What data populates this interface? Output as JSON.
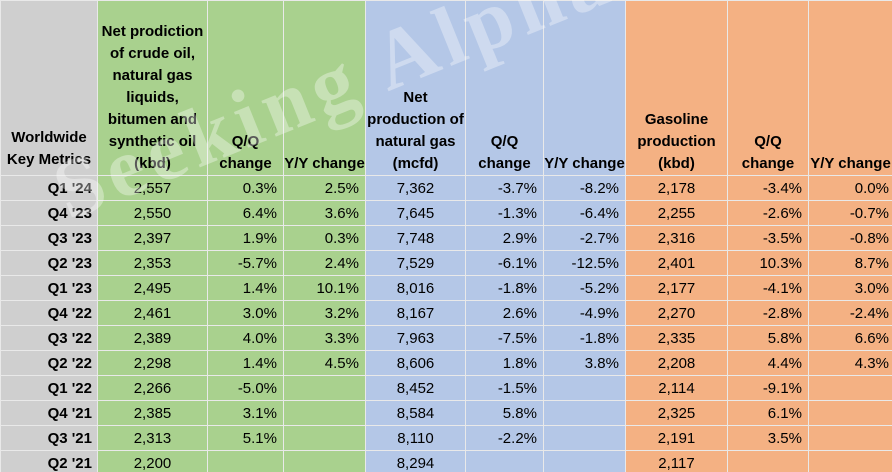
{
  "watermark": "Seeking Alpha",
  "colors": {
    "gray": "#cfcfcf",
    "green": "#a9d18e",
    "blue": "#b4c7e7",
    "orange": "#f4b183"
  },
  "headers": [
    "Worldwide Key Metrics",
    "Net prodiction of crude oil, natural gas liquids, bitumen and synthetic oil (kbd)",
    "Q/Q change",
    "Y/Y change",
    "Net production of natural gas (mcfd)",
    "Q/Q change",
    "Y/Y change",
    "Gasoline production (kbd)",
    "Q/Q change",
    "Y/Y change"
  ],
  "rows": [
    [
      "Q1 '24",
      "2,557",
      "0.3%",
      "2.5%",
      "7,362",
      "-3.7%",
      "-8.2%",
      "2,178",
      "-3.4%",
      "0.0%"
    ],
    [
      "Q4 '23",
      "2,550",
      "6.4%",
      "3.6%",
      "7,645",
      "-1.3%",
      "-6.4%",
      "2,255",
      "-2.6%",
      "-0.7%"
    ],
    [
      "Q3 '23",
      "2,397",
      "1.9%",
      "0.3%",
      "7,748",
      "2.9%",
      "-2.7%",
      "2,316",
      "-3.5%",
      "-0.8%"
    ],
    [
      "Q2 '23",
      "2,353",
      "-5.7%",
      "2.4%",
      "7,529",
      "-6.1%",
      "-12.5%",
      "2,401",
      "10.3%",
      "8.7%"
    ],
    [
      "Q1 '23",
      "2,495",
      "1.4%",
      "10.1%",
      "8,016",
      "-1.8%",
      "-5.2%",
      "2,177",
      "-4.1%",
      "3.0%"
    ],
    [
      "Q4 '22",
      "2,461",
      "3.0%",
      "3.2%",
      "8,167",
      "2.6%",
      "-4.9%",
      "2,270",
      "-2.8%",
      "-2.4%"
    ],
    [
      "Q3 '22",
      "2,389",
      "4.0%",
      "3.3%",
      "7,963",
      "-7.5%",
      "-1.8%",
      "2,335",
      "5.8%",
      "6.6%"
    ],
    [
      "Q2 '22",
      "2,298",
      "1.4%",
      "4.5%",
      "8,606",
      "1.8%",
      "3.8%",
      "2,208",
      "4.4%",
      "4.3%"
    ],
    [
      "Q1 '22",
      "2,266",
      "-5.0%",
      "",
      "8,452",
      "-1.5%",
      "",
      "2,114",
      "-9.1%",
      ""
    ],
    [
      "Q4 '21",
      "2,385",
      "3.1%",
      "",
      "8,584",
      "5.8%",
      "",
      "2,325",
      "6.1%",
      ""
    ],
    [
      "Q3 '21",
      "2,313",
      "5.1%",
      "",
      "8,110",
      "-2.2%",
      "",
      "2,191",
      "3.5%",
      ""
    ],
    [
      "Q2 '21",
      "2,200",
      "",
      "",
      "8,294",
      "",
      "",
      "2,117",
      "",
      ""
    ]
  ]
}
